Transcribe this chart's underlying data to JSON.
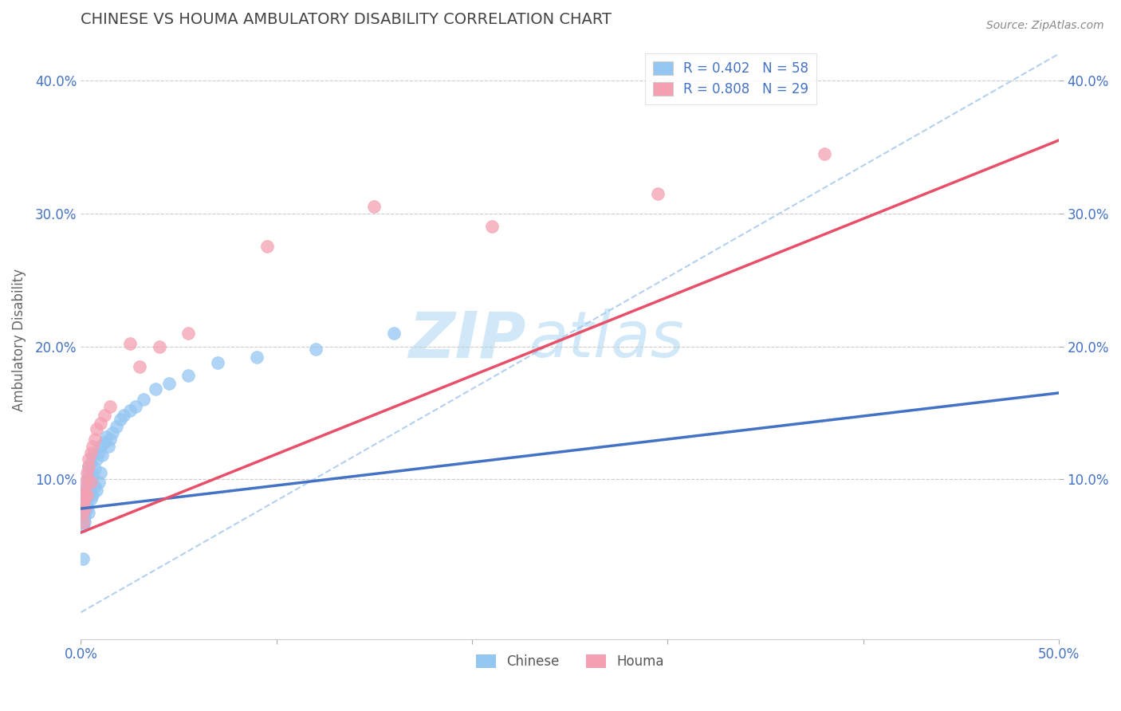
{
  "title": "CHINESE VS HOUMA AMBULATORY DISABILITY CORRELATION CHART",
  "source": "Source: ZipAtlas.com",
  "ylabel": "Ambulatory Disability",
  "xlim": [
    0.0,
    0.5
  ],
  "ylim": [
    -0.02,
    0.43
  ],
  "xticks": [
    0.0,
    0.1,
    0.2,
    0.3,
    0.4,
    0.5
  ],
  "xticklabels_show": [
    "0.0%",
    "",
    "",
    "",
    "",
    "50.0%"
  ],
  "yticks": [
    0.0,
    0.1,
    0.2,
    0.3,
    0.4
  ],
  "yticklabels": [
    "",
    "10.0%",
    "20.0%",
    "30.0%",
    "40.0%"
  ],
  "right_yticklabels": [
    "10.0%",
    "20.0%",
    "30.0%",
    "40.0%"
  ],
  "right_yticks": [
    0.1,
    0.2,
    0.3,
    0.4
  ],
  "chinese_R": 0.402,
  "chinese_N": 58,
  "houma_R": 0.808,
  "houma_N": 29,
  "chinese_color": "#94C6F2",
  "houma_color": "#F5A0B2",
  "chinese_line_color": "#4472C4",
  "houma_line_color": "#E8506A",
  "ref_line_color": "#AACCEE",
  "watermark_zip": "ZIP",
  "watermark_atlas": "atlas",
  "watermark_color": "#D0E8F8",
  "title_color": "#444444",
  "axis_label_color": "#4472C4",
  "tick_label_color": "#4472C4",
  "legend_label1": "R = 0.402   N = 58",
  "legend_label2": "R = 0.808   N = 29",
  "chinese_x": [
    0.001,
    0.001,
    0.001,
    0.001,
    0.001,
    0.001,
    0.001,
    0.002,
    0.002,
    0.002,
    0.002,
    0.002,
    0.002,
    0.002,
    0.003,
    0.003,
    0.003,
    0.003,
    0.003,
    0.004,
    0.004,
    0.004,
    0.004,
    0.005,
    0.005,
    0.005,
    0.005,
    0.006,
    0.006,
    0.006,
    0.007,
    0.007,
    0.008,
    0.008,
    0.009,
    0.009,
    0.01,
    0.01,
    0.011,
    0.012,
    0.013,
    0.014,
    0.015,
    0.016,
    0.018,
    0.02,
    0.022,
    0.025,
    0.028,
    0.032,
    0.038,
    0.045,
    0.055,
    0.07,
    0.09,
    0.12,
    0.16,
    0.001
  ],
  "chinese_y": [
    0.07,
    0.075,
    0.068,
    0.08,
    0.072,
    0.065,
    0.082,
    0.076,
    0.085,
    0.078,
    0.072,
    0.068,
    0.09,
    0.088,
    0.082,
    0.095,
    0.078,
    0.1,
    0.088,
    0.092,
    0.105,
    0.075,
    0.11,
    0.098,
    0.085,
    0.112,
    0.09,
    0.102,
    0.118,
    0.088,
    0.108,
    0.095,
    0.115,
    0.092,
    0.12,
    0.098,
    0.125,
    0.105,
    0.118,
    0.128,
    0.132,
    0.125,
    0.13,
    0.135,
    0.14,
    0.145,
    0.148,
    0.152,
    0.155,
    0.16,
    0.168,
    0.172,
    0.178,
    0.188,
    0.192,
    0.198,
    0.21,
    0.04
  ],
  "houma_x": [
    0.001,
    0.001,
    0.001,
    0.002,
    0.002,
    0.002,
    0.002,
    0.003,
    0.003,
    0.003,
    0.004,
    0.004,
    0.005,
    0.005,
    0.006,
    0.007,
    0.008,
    0.01,
    0.012,
    0.015,
    0.025,
    0.03,
    0.04,
    0.055,
    0.095,
    0.15,
    0.21,
    0.295,
    0.38
  ],
  "houma_y": [
    0.068,
    0.075,
    0.082,
    0.078,
    0.085,
    0.09,
    0.095,
    0.088,
    0.1,
    0.105,
    0.11,
    0.115,
    0.12,
    0.098,
    0.125,
    0.13,
    0.138,
    0.142,
    0.148,
    0.155,
    0.202,
    0.185,
    0.2,
    0.21,
    0.275,
    0.305,
    0.29,
    0.315,
    0.345
  ],
  "chinese_line_x": [
    0.0,
    0.5
  ],
  "chinese_line_y": [
    0.078,
    0.165
  ],
  "houma_line_x": [
    0.0,
    0.5
  ],
  "houma_line_y": [
    0.06,
    0.355
  ],
  "ref_line_x": [
    0.0,
    0.5
  ],
  "ref_line_y": [
    0.0,
    0.42
  ]
}
